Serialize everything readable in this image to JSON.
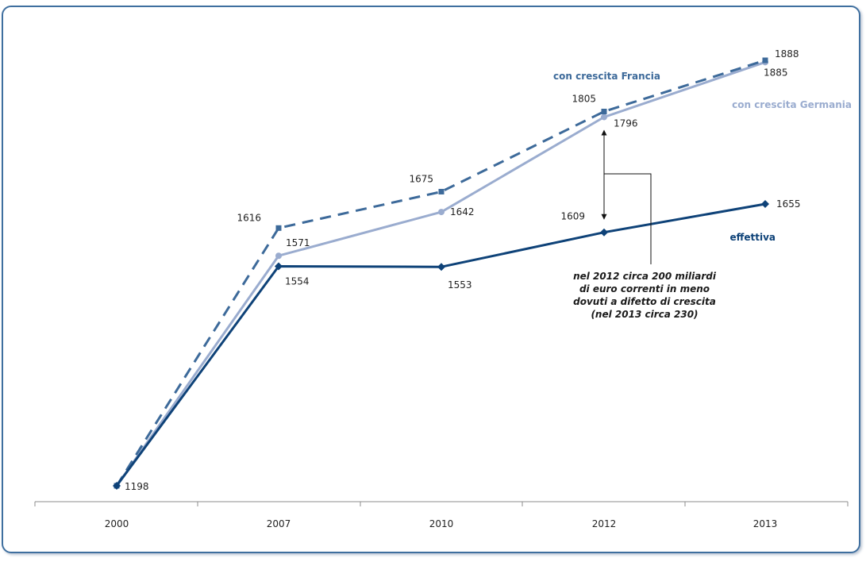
{
  "chart_data": {
    "type": "line",
    "categories": [
      "2000",
      "2007",
      "2010",
      "2012",
      "2013"
    ],
    "ylim": [
      1150,
      1950
    ],
    "grid": false,
    "series": [
      {
        "name": "con crescita Francia",
        "color": "#3d6a9a",
        "dash": true,
        "marker": "square",
        "values": [
          1198,
          1616,
          1675,
          1805,
          1888
        ],
        "labels": [
          "",
          "1616",
          "1675",
          "1805",
          "1888"
        ]
      },
      {
        "name": "con crescita Germania",
        "color": "#9aaccf",
        "dash": false,
        "marker": "circle",
        "values": [
          1198,
          1571,
          1642,
          1796,
          1885
        ],
        "labels": [
          "",
          "1571",
          "1642",
          "1796",
          "1885"
        ]
      },
      {
        "name": "effettiva",
        "color": "#0e4278",
        "dash": false,
        "marker": "diamond",
        "values": [
          1198,
          1554,
          1553,
          1609,
          1655
        ],
        "labels": [
          "1198",
          "1554",
          "1553",
          "1609",
          "1655"
        ]
      }
    ],
    "annotation": {
      "lines": [
        "nel 2012 circa 200 miliardi",
        "di euro correnti in meno",
        "dovuti a difetto di crescita",
        "(nel 2013 circa 230)"
      ],
      "from": 1796,
      "to": 1609,
      "category": "2012"
    }
  }
}
